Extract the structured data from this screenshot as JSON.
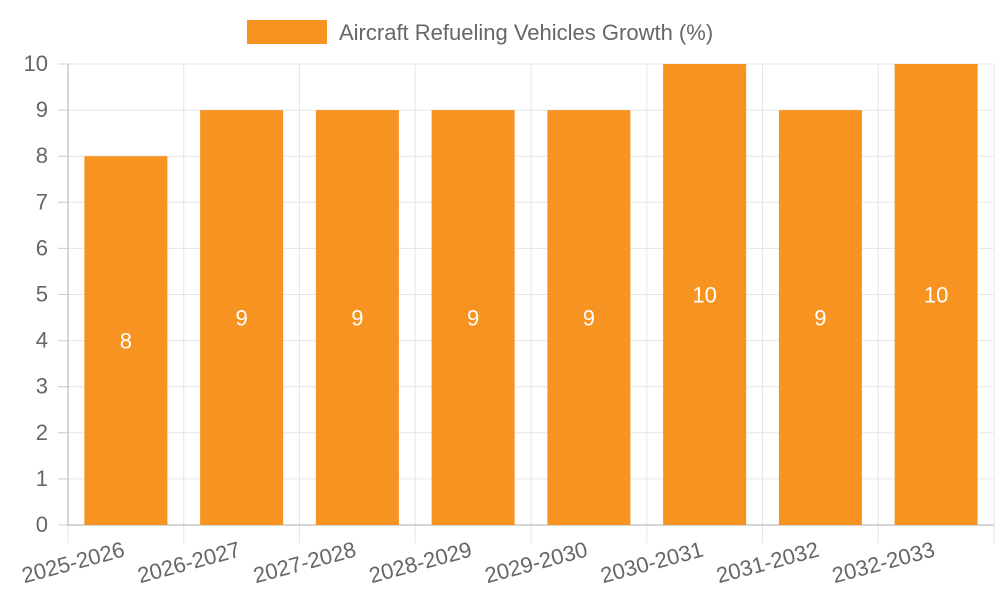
{
  "chart_data": {
    "type": "bar",
    "title": "",
    "xlabel": "",
    "ylabel": "",
    "ylim": [
      0,
      10
    ],
    "yticks": [
      0,
      1,
      2,
      3,
      4,
      5,
      6,
      7,
      8,
      9,
      10
    ],
    "categories": [
      "2025-2026",
      "2026-2027",
      "2027-2028",
      "2028-2029",
      "2029-2030",
      "2030-2031",
      "2031-2032",
      "2032-2033"
    ],
    "series": [
      {
        "name": "Aircraft Refueling Vehicles Growth (%)",
        "values": [
          8,
          9,
          9,
          9,
          9,
          10,
          9,
          10
        ],
        "color": "#F79421"
      }
    ],
    "legend": {
      "position": "top-center",
      "label": "Aircraft Refueling Vehicles Growth (%)",
      "color": "#F79421"
    },
    "grid": true,
    "data_labels": true
  }
}
